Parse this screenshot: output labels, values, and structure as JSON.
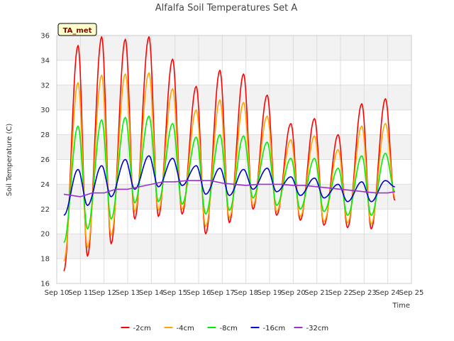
{
  "chart_data": {
    "type": "line",
    "title": "Alfalfa Soil Temperatures Set A",
    "xlabel": "Time",
    "ylabel": "Soil Temperature (C)",
    "station_label": "TA_met",
    "ylim": [
      16,
      36
    ],
    "xlim": [
      10,
      25
    ],
    "y_ticks": [
      16,
      18,
      20,
      22,
      24,
      26,
      28,
      30,
      32,
      34,
      36
    ],
    "x_ticks": [
      {
        "value": 10,
        "label": "Sep 10"
      },
      {
        "value": 11,
        "label": "Sep 11"
      },
      {
        "value": 12,
        "label": "Sep 12"
      },
      {
        "value": 13,
        "label": "Sep 13"
      },
      {
        "value": 14,
        "label": "Sep 14"
      },
      {
        "value": 15,
        "label": "Sep 15"
      },
      {
        "value": 16,
        "label": "Sep 16"
      },
      {
        "value": 17,
        "label": "Sep 17"
      },
      {
        "value": 18,
        "label": "Sep 18"
      },
      {
        "value": 19,
        "label": "Sep 19"
      },
      {
        "value": 20,
        "label": "Sep 20"
      },
      {
        "value": 21,
        "label": "Sep 21"
      },
      {
        "value": 22,
        "label": "Sep 22"
      },
      {
        "value": 23,
        "label": "Sep 23"
      },
      {
        "value": 24,
        "label": "Sep 24"
      },
      {
        "value": 25,
        "label": "Sep 25"
      }
    ],
    "grid": true,
    "legend_position": "bottom",
    "series": [
      {
        "name": "-2cm",
        "color": "#ff0000",
        "x_start": 10.3,
        "x_end": 24.3,
        "daily_min": [
          17.0,
          18.2,
          19.2,
          21.2,
          21.4,
          21.6,
          20.0,
          20.9,
          22.0,
          21.5,
          21.1,
          20.7,
          20.5,
          20.4,
          22.7
        ],
        "daily_max": [
          35.2,
          35.9,
          35.7,
          35.9,
          34.1,
          31.9,
          33.2,
          32.9,
          31.2,
          28.9,
          29.3,
          28.0,
          30.5,
          30.9
        ]
      },
      {
        "name": "-4cm",
        "color": "#ffa500",
        "x_start": 10.3,
        "x_end": 24.3,
        "daily_min": [
          17.8,
          18.9,
          19.9,
          21.8,
          21.9,
          22.0,
          20.6,
          21.3,
          22.3,
          21.8,
          21.4,
          21.0,
          20.9,
          20.8,
          23.0
        ],
        "daily_max": [
          32.2,
          32.8,
          32.9,
          33.0,
          31.7,
          30.0,
          30.8,
          30.6,
          29.5,
          27.6,
          27.9,
          26.8,
          28.7,
          28.9
        ]
      },
      {
        "name": "-8cm",
        "color": "#00ee00",
        "x_start": 10.3,
        "x_end": 24.3,
        "daily_min": [
          19.3,
          20.4,
          21.2,
          22.5,
          22.6,
          22.4,
          21.6,
          21.9,
          22.9,
          22.3,
          22.0,
          21.8,
          21.5,
          21.5,
          23.4
        ],
        "daily_max": [
          28.7,
          29.2,
          29.4,
          29.5,
          28.9,
          27.8,
          28.0,
          27.9,
          27.4,
          26.1,
          26.1,
          25.3,
          26.3,
          26.5
        ]
      },
      {
        "name": "-16cm",
        "color": "#0000cc",
        "x_start": 10.3,
        "x_end": 24.3,
        "daily_min": [
          21.5,
          22.3,
          23.0,
          23.6,
          23.8,
          23.9,
          23.2,
          23.1,
          23.6,
          23.4,
          23.1,
          22.9,
          22.6,
          22.6,
          23.8
        ],
        "daily_max": [
          25.2,
          25.5,
          26.0,
          26.3,
          26.1,
          25.5,
          25.3,
          25.2,
          25.3,
          24.6,
          24.5,
          24.0,
          24.2,
          24.3
        ]
      },
      {
        "name": "-32cm",
        "color": "#9933cc",
        "x_start": 10.3,
        "x_end": 24.3,
        "points": [
          [
            10.3,
            23.2
          ],
          [
            11.0,
            23.0
          ],
          [
            11.5,
            23.3
          ],
          [
            12.0,
            23.3
          ],
          [
            12.5,
            23.6
          ],
          [
            13.0,
            23.6
          ],
          [
            13.5,
            23.8
          ],
          [
            14.0,
            24.0
          ],
          [
            14.5,
            24.2
          ],
          [
            15.0,
            24.2
          ],
          [
            15.5,
            24.3
          ],
          [
            16.0,
            24.3
          ],
          [
            16.5,
            24.3
          ],
          [
            17.0,
            24.1
          ],
          [
            17.5,
            24.0
          ],
          [
            18.0,
            23.9
          ],
          [
            18.5,
            24.0
          ],
          [
            19.0,
            24.0
          ],
          [
            19.5,
            24.0
          ],
          [
            20.0,
            23.9
          ],
          [
            20.5,
            23.9
          ],
          [
            21.0,
            23.8
          ],
          [
            21.5,
            23.7
          ],
          [
            22.0,
            23.6
          ],
          [
            22.5,
            23.5
          ],
          [
            23.0,
            23.4
          ],
          [
            23.5,
            23.3
          ],
          [
            24.0,
            23.3
          ],
          [
            24.3,
            23.4
          ]
        ]
      }
    ]
  }
}
